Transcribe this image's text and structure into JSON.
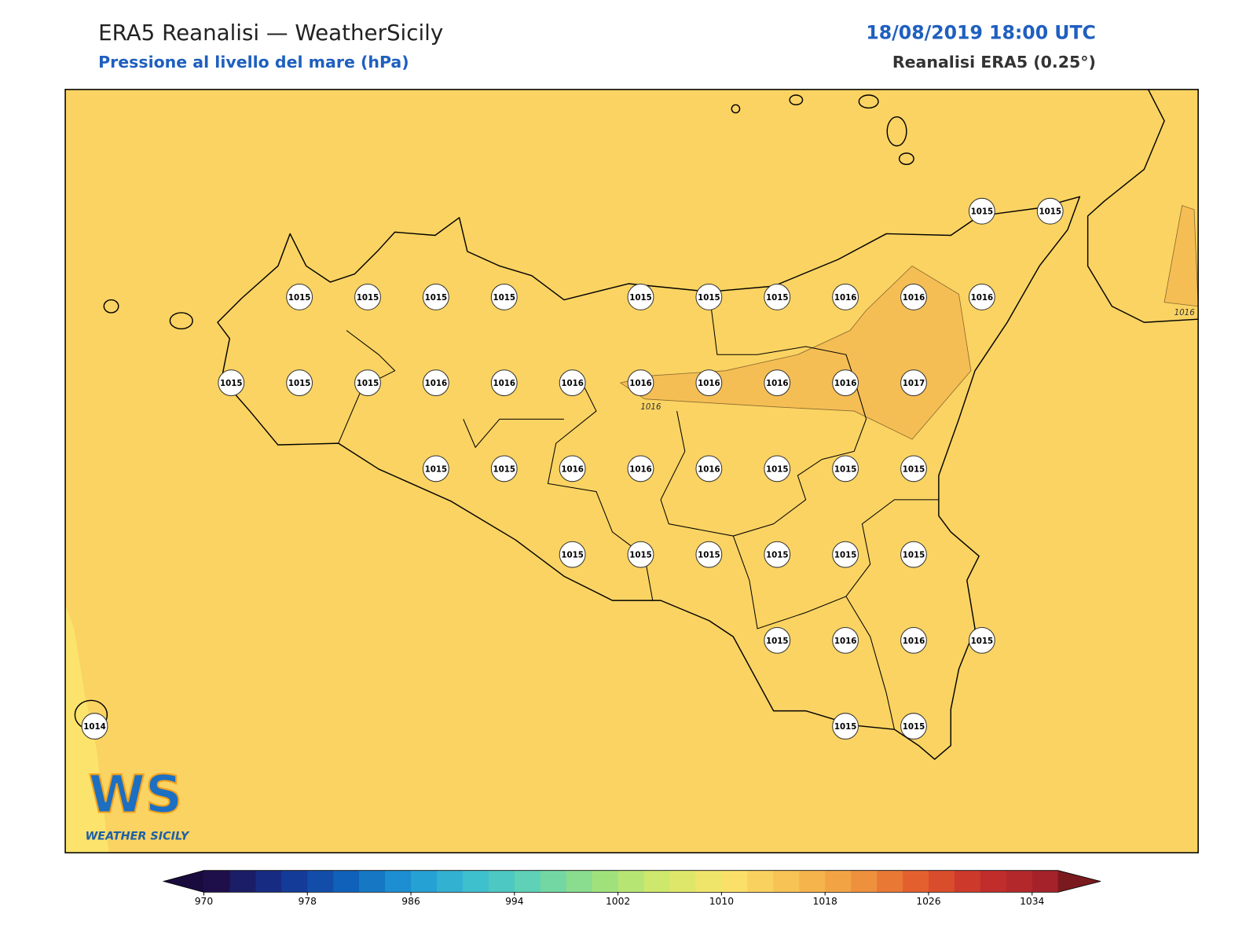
{
  "header": {
    "title": "ERA5 Reanalisi — WeatherSicily",
    "subtitle": "Pressione al livello del mare (hPa)",
    "date": "18/08/2019 18:00 UTC",
    "source": "Reanalisi ERA5 (0.25°)"
  },
  "map": {
    "grid": [
      [
        null,
        null,
        null,
        null,
        null,
        null,
        null,
        null,
        null,
        null,
        null,
        null,
        null,
        1015,
        1015
      ],
      [
        null,
        null,
        null,
        1015,
        1015,
        1015,
        1015,
        null,
        1015,
        1015,
        1015,
        1016,
        1016,
        1016,
        null
      ],
      [
        null,
        null,
        1015,
        1015,
        1015,
        1016,
        1016,
        1016,
        1016,
        1016,
        1016,
        1016,
        1017,
        null,
        null
      ],
      [
        null,
        null,
        null,
        null,
        null,
        1015,
        1015,
        1016,
        1016,
        1016,
        1015,
        1015,
        1015,
        null,
        null
      ],
      [
        null,
        null,
        null,
        null,
        null,
        null,
        null,
        1015,
        1015,
        1015,
        1015,
        1015,
        1015,
        null,
        null
      ],
      [
        null,
        null,
        null,
        null,
        null,
        null,
        null,
        null,
        null,
        null,
        1015,
        1016,
        1016,
        1015,
        null
      ],
      [
        1014,
        null,
        null,
        null,
        null,
        null,
        null,
        null,
        null,
        null,
        null,
        1015,
        1015,
        null,
        null
      ]
    ],
    "contour_labels": [
      1016,
      1016
    ],
    "background_color": "#fad362",
    "highlight_color": "#f5be54",
    "low_color": "#fbe36c"
  },
  "logo": {
    "mark": "WS",
    "name": "WEATHER SICILY"
  },
  "colorbar": {
    "lim": [
      970,
      1036
    ],
    "step": 2,
    "ticks": [
      970,
      978,
      986,
      994,
      1002,
      1010,
      1018,
      1026,
      1034
    ],
    "colormap": [
      "#1e0f4a",
      "#16318f",
      "#0f5fb8",
      "#1f97d6",
      "#3cbfcf",
      "#63d3b3",
      "#9be07e",
      "#d2e96a",
      "#fae46c",
      "#f7c153",
      "#f09a40",
      "#e35e2d",
      "#c7302b",
      "#a5222a"
    ],
    "under_color": "#1a0b3f",
    "over_color": "#7a1a1f"
  }
}
